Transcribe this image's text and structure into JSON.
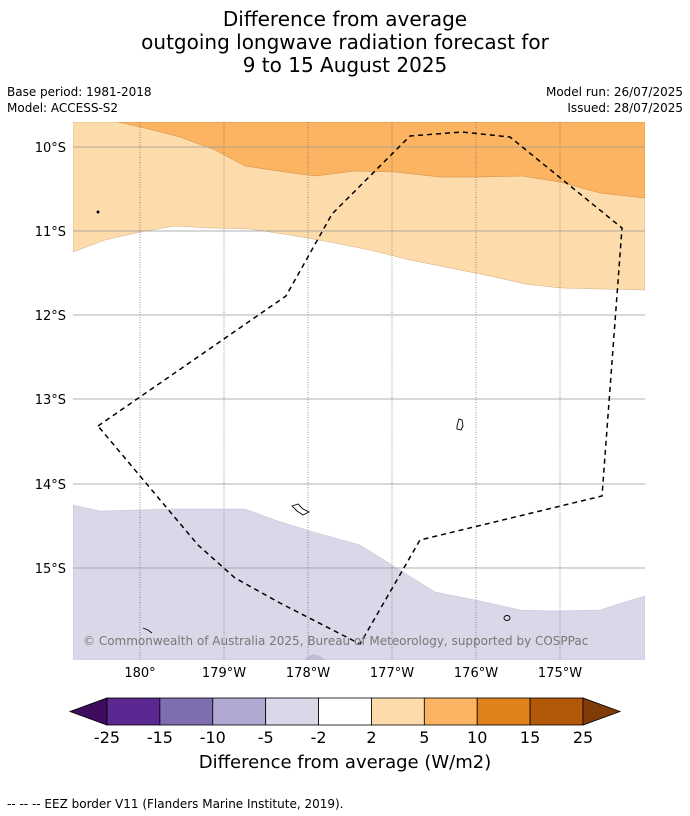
{
  "title": {
    "line1": "Difference from average",
    "line2": "outgoing longwave radiation forecast for",
    "line3": "9 to 15 August 2025"
  },
  "meta": {
    "base_period": "Base period: 1981-2018",
    "model": "Model: ACCESS-S2",
    "model_run": "Model run: 26/07/2025",
    "issued": "Issued: 28/07/2025"
  },
  "map": {
    "lat_labels": [
      "10°S",
      "11°S",
      "12°S",
      "13°S",
      "14°S",
      "15°S"
    ],
    "lon_labels": [
      "180°",
      "179°W",
      "178°W",
      "177°W",
      "176°W",
      "175°W"
    ],
    "copyright": "© Commonwealth of Australia 2025, Bureau of Meteorology, supported by COSPPac",
    "colors": {
      "orange_10_15": "#fdb462",
      "orange_5_10": "#fddbab",
      "neutral": "#ffffff",
      "purple_-5_-2": "#d8d8e8",
      "coast": "#000000"
    }
  },
  "colorbar": {
    "ticks": [
      "-25",
      "-15",
      "-10",
      "-5",
      "-2",
      "2",
      "5",
      "10",
      "15",
      "25"
    ],
    "colors": [
      "#3f0c5e",
      "#5a2890",
      "#7e6daf",
      "#b1a9d1",
      "#d8d8e8",
      "#ffffff",
      "#fddbab",
      "#fdb462",
      "#e0821a",
      "#b35806",
      "#7f3b08"
    ],
    "label": "Difference from average (W/m2)"
  },
  "footnote": "--  --  -- EEZ border V11 (Flanders Marine Institute, 2019)."
}
